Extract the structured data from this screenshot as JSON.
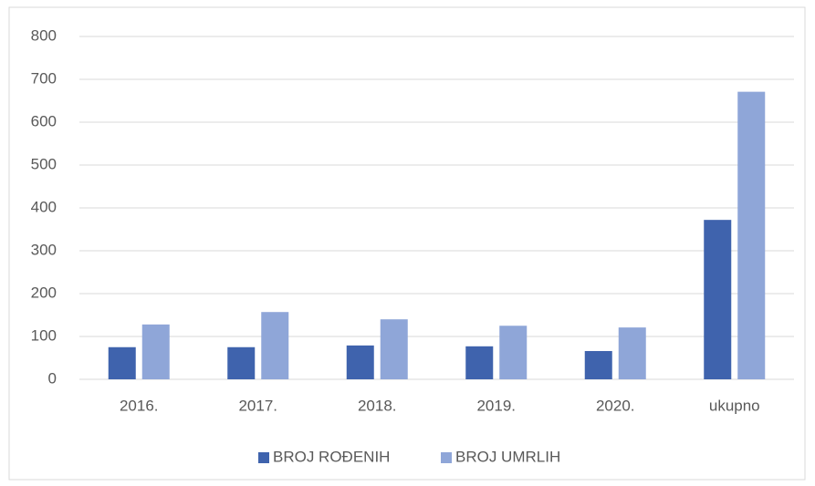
{
  "chart_data": {
    "type": "bar",
    "categories": [
      "2016.",
      "2017.",
      "2018.",
      "2019.",
      "2020.",
      "ukupno"
    ],
    "series": [
      {
        "name": "BROJ ROĐENIH",
        "color": "#3f63ad",
        "values": [
          75,
          75,
          79,
          77,
          66,
          372
        ]
      },
      {
        "name": "BROJ UMRLIH",
        "color": "#8fa6d8",
        "values": [
          128,
          157,
          140,
          125,
          121,
          671
        ]
      }
    ],
    "ylim": [
      0,
      800
    ],
    "yticks": [
      0,
      100,
      200,
      300,
      400,
      500,
      600,
      700,
      800
    ],
    "grid": true,
    "legend": "bottom"
  }
}
